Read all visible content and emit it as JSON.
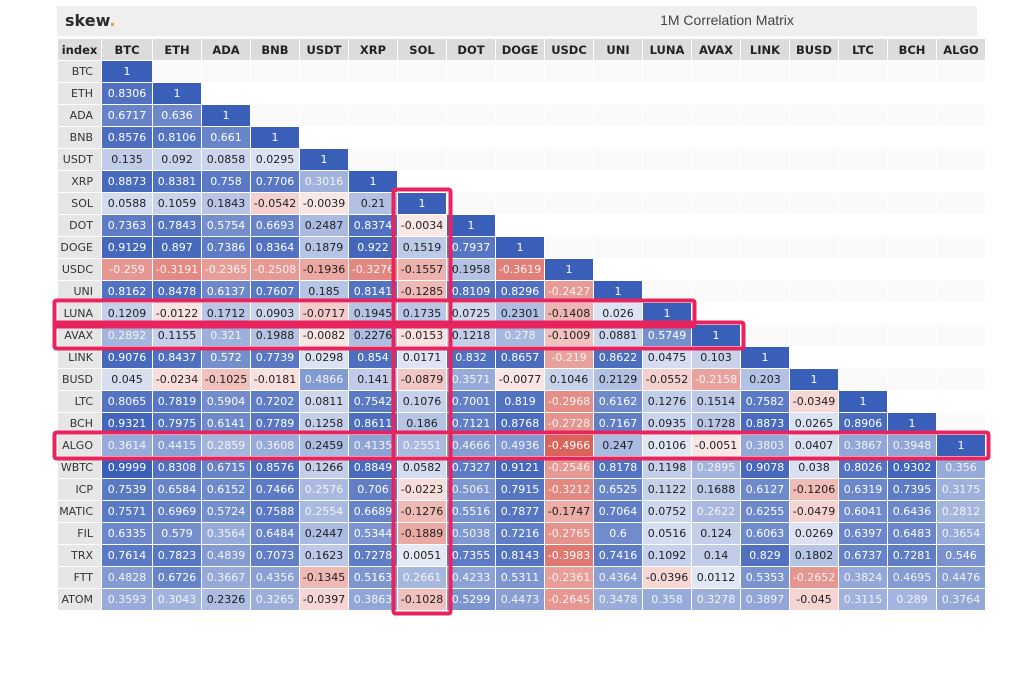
{
  "app": {
    "logo": "skew",
    "logo_dot": ".",
    "title": "1M Correlation Matrix"
  },
  "chart_data": {
    "type": "heatmap",
    "title": "1M Correlation Matrix",
    "index_label": "index",
    "columns": [
      "BTC",
      "ETH",
      "ADA",
      "BNB",
      "USDT",
      "XRP",
      "SOL",
      "DOT",
      "DOGE",
      "USDC",
      "UNI",
      "LUNA",
      "AVAX",
      "LINK",
      "BUSD",
      "LTC",
      "BCH",
      "ALGO"
    ],
    "rows": [
      {
        "label": "BTC",
        "values": [
          "1"
        ]
      },
      {
        "label": "ETH",
        "values": [
          "0.8306",
          "1"
        ]
      },
      {
        "label": "ADA",
        "values": [
          "0.6717",
          "0.636",
          "1"
        ]
      },
      {
        "label": "BNB",
        "values": [
          "0.8576",
          "0.8106",
          "0.661",
          "1"
        ]
      },
      {
        "label": "USDT",
        "values": [
          "0.135",
          "0.092",
          "0.0858",
          "0.0295",
          "1"
        ]
      },
      {
        "label": "XRP",
        "values": [
          "0.8873",
          "0.8381",
          "0.758",
          "0.7706",
          "0.3016",
          "1"
        ]
      },
      {
        "label": "SOL",
        "values": [
          "0.0588",
          "0.1059",
          "0.1843",
          "-0.0542",
          "-0.0039",
          "0.21",
          "1"
        ]
      },
      {
        "label": "DOT",
        "values": [
          "0.7363",
          "0.7843",
          "0.5754",
          "0.6693",
          "0.2487",
          "0.8374",
          "-0.0034",
          "1"
        ]
      },
      {
        "label": "DOGE",
        "values": [
          "0.9129",
          "0.897",
          "0.7386",
          "0.8364",
          "0.1879",
          "0.922",
          "0.1519",
          "0.7937",
          "1"
        ]
      },
      {
        "label": "USDC",
        "values": [
          "-0.259",
          "-0.3191",
          "-0.2365",
          "-0.2508",
          "-0.1936",
          "-0.3276",
          "-0.1557",
          "0.1958",
          "-0.3619",
          "1"
        ]
      },
      {
        "label": "UNI",
        "values": [
          "0.8162",
          "0.8478",
          "0.6137",
          "0.7607",
          "0.185",
          "0.8141",
          "-0.1285",
          "0.8109",
          "0.8296",
          "-0.2427",
          "1"
        ]
      },
      {
        "label": "LUNA",
        "values": [
          "0.1209",
          "-0.0122",
          "0.1712",
          "0.0903",
          "-0.0717",
          "0.1945",
          "0.1735",
          "0.0725",
          "0.2301",
          "-0.1408",
          "0.026",
          "1"
        ]
      },
      {
        "label": "AVAX",
        "values": [
          "0.2892",
          "0.1155",
          "0.321",
          "0.1988",
          "-0.0082",
          "0.2276",
          "-0.0153",
          "0.1218",
          "0.278",
          "-0.1009",
          "0.0881",
          "0.5749",
          "1"
        ]
      },
      {
        "label": "LINK",
        "values": [
          "0.9076",
          "0.8437",
          "0.572",
          "0.7739",
          "0.0298",
          "0.854",
          "0.0171",
          "0.832",
          "0.8657",
          "-0.219",
          "0.8622",
          "0.0475",
          "0.103",
          "1"
        ]
      },
      {
        "label": "BUSD",
        "values": [
          "0.045",
          "-0.0234",
          "-0.1025",
          "-0.0181",
          "0.4866",
          "0.141",
          "-0.0879",
          "0.3571",
          "-0.0077",
          "0.1046",
          "0.2129",
          "-0.0552",
          "-0.2158",
          "0.203",
          "1"
        ]
      },
      {
        "label": "LTC",
        "values": [
          "0.8065",
          "0.7819",
          "0.5904",
          "0.7202",
          "0.0811",
          "0.7542",
          "0.1076",
          "0.7001",
          "0.819",
          "-0.2968",
          "0.6162",
          "0.1276",
          "0.1514",
          "0.7582",
          "-0.0349",
          "1"
        ]
      },
      {
        "label": "BCH",
        "values": [
          "0.9321",
          "0.7975",
          "0.6141",
          "0.7789",
          "0.1258",
          "0.8611",
          "0.186",
          "0.7121",
          "0.8768",
          "-0.2728",
          "0.7167",
          "0.0935",
          "0.1728",
          "0.8873",
          "0.0265",
          "0.8906",
          "1"
        ]
      },
      {
        "label": "ALGO",
        "values": [
          "0.3614",
          "0.4415",
          "0.2859",
          "0.3608",
          "0.2459",
          "0.4135",
          "0.2551",
          "0.4666",
          "0.4936",
          "-0.4966",
          "0.247",
          "0.0106",
          "-0.0051",
          "0.3803",
          "0.0407",
          "0.3867",
          "0.3948",
          "1"
        ]
      },
      {
        "label": "WBTC",
        "values": [
          "0.9999",
          "0.8308",
          "0.6715",
          "0.8576",
          "0.1266",
          "0.8849",
          "0.0582",
          "0.7327",
          "0.9121",
          "-0.2546",
          "0.8178",
          "0.1198",
          "0.2895",
          "0.9078",
          "0.038",
          "0.8026",
          "0.9302",
          "0.356"
        ]
      },
      {
        "label": "ICP",
        "values": [
          "0.7539",
          "0.6584",
          "0.6152",
          "0.7466",
          "0.2576",
          "0.706",
          "-0.0223",
          "0.5061",
          "0.7915",
          "-0.3212",
          "0.6525",
          "0.1122",
          "0.1688",
          "0.6127",
          "-0.1206",
          "0.6319",
          "0.7395",
          "0.3175"
        ]
      },
      {
        "label": "MATIC",
        "values": [
          "0.7571",
          "0.6969",
          "0.5724",
          "0.7588",
          "0.2554",
          "0.6689",
          "-0.1276",
          "0.5516",
          "0.7877",
          "-0.1747",
          "0.7064",
          "0.0752",
          "0.2622",
          "0.6255",
          "-0.0479",
          "0.6041",
          "0.6436",
          "0.2812"
        ]
      },
      {
        "label": "FIL",
        "values": [
          "0.6335",
          "0.579",
          "0.3564",
          "0.6484",
          "0.2447",
          "0.5344",
          "-0.1889",
          "0.5038",
          "0.7216",
          "-0.2765",
          "0.6",
          "0.0516",
          "0.124",
          "0.6063",
          "0.0269",
          "0.6397",
          "0.6483",
          "0.3654"
        ]
      },
      {
        "label": "TRX",
        "values": [
          "0.7614",
          "0.7823",
          "0.4839",
          "0.7073",
          "0.1623",
          "0.7278",
          "0.0051",
          "0.7355",
          "0.8143",
          "-0.3983",
          "0.7416",
          "0.1092",
          "0.14",
          "0.829",
          "0.1802",
          "0.6737",
          "0.7281",
          "0.546"
        ]
      },
      {
        "label": "FTT",
        "values": [
          "0.4828",
          "0.6726",
          "0.3667",
          "0.4356",
          "-0.1345",
          "0.5163",
          "0.2661",
          "0.4233",
          "0.5311",
          "-0.2361",
          "0.4364",
          "-0.0396",
          "0.0112",
          "0.5353",
          "-0.2652",
          "0.3824",
          "0.4695",
          "0.4476"
        ]
      },
      {
        "label": "ATOM",
        "values": [
          "0.3593",
          "0.3043",
          "0.2326",
          "0.3265",
          "-0.0397",
          "0.3863",
          "-0.1028",
          "0.5299",
          "0.4473",
          "-0.2645",
          "0.3478",
          "0.358",
          "0.3278",
          "0.3897",
          "-0.045",
          "0.3115",
          "0.289",
          "0.3764"
        ]
      }
    ],
    "highlights": {
      "rows": [
        "LUNA",
        "AVAX",
        "ALGO"
      ],
      "columns": [
        "SOL"
      ],
      "color": "#e8245e"
    },
    "colors": {
      "max": "#3a5fb8",
      "zero": "#ffffff",
      "min": "#d8584f"
    }
  }
}
